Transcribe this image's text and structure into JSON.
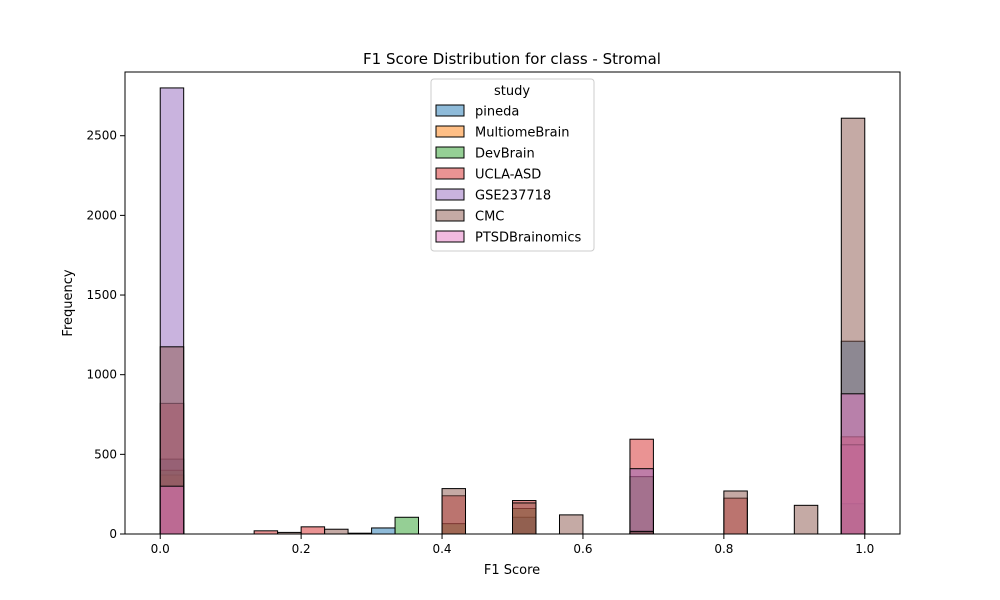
{
  "chart_data": {
    "type": "bar",
    "title": "F1 Score Distribution for class - Stromal",
    "xlabel": "F1 Score",
    "ylabel": "Frequency",
    "xlim": [
      -0.05,
      1.05
    ],
    "ylim": [
      0,
      2900
    ],
    "xticks": [
      0.0,
      0.2,
      0.4,
      0.6,
      0.8,
      1.0
    ],
    "xtick_labels": [
      "0.0",
      "0.2",
      "0.4",
      "0.6",
      "0.8",
      "1.0"
    ],
    "yticks": [
      0,
      500,
      1000,
      1500,
      2000,
      2500
    ],
    "ytick_labels": [
      "0",
      "500",
      "1000",
      "1500",
      "2000",
      "2500"
    ],
    "bin_width": 0.0333,
    "grid": false,
    "legend": {
      "title": "study",
      "position": "top-center",
      "entries": [
        "pineda",
        "MultiomeBrain",
        "DevBrain",
        "UCLA-ASD",
        "GSE237718",
        "CMC",
        "PTSDBrainomics"
      ]
    },
    "series": [
      {
        "name": "pineda",
        "color": "#1f77b4",
        "bars": [
          {
            "x": 0.0,
            "count": 470
          },
          {
            "x": 0.2667,
            "count": 5
          },
          {
            "x": 0.3,
            "count": 38
          },
          {
            "x": 0.5,
            "count": 105
          },
          {
            "x": 0.6667,
            "count": 20
          },
          {
            "x": 0.9667,
            "count": 1210
          }
        ]
      },
      {
        "name": "MultiomeBrain",
        "color": "#ff7f0e",
        "bars": [
          {
            "x": 0.0,
            "count": 370
          },
          {
            "x": 0.6667,
            "count": 5
          },
          {
            "x": 0.9667,
            "count": 560
          }
        ]
      },
      {
        "name": "DevBrain",
        "color": "#2ca02c",
        "bars": [
          {
            "x": 0.0,
            "count": 400
          },
          {
            "x": 0.3333,
            "count": 105
          },
          {
            "x": 0.4,
            "count": 65
          },
          {
            "x": 0.5,
            "count": 160
          },
          {
            "x": 0.6667,
            "count": 360
          },
          {
            "x": 0.9667,
            "count": 190
          }
        ]
      },
      {
        "name": "UCLA-ASD",
        "color": "#d62728",
        "bars": [
          {
            "x": 0.0,
            "count": 820
          },
          {
            "x": 0.1333,
            "count": 20
          },
          {
            "x": 0.2,
            "count": 45
          },
          {
            "x": 0.4,
            "count": 240
          },
          {
            "x": 0.5,
            "count": 210
          },
          {
            "x": 0.6667,
            "count": 595
          },
          {
            "x": 0.8,
            "count": 225
          },
          {
            "x": 0.9667,
            "count": 610
          }
        ]
      },
      {
        "name": "GSE237718",
        "color": "#9467bd",
        "bars": [
          {
            "x": 0.0,
            "count": 2800
          },
          {
            "x": 0.6667,
            "count": 410
          },
          {
            "x": 0.9667,
            "count": 560
          }
        ]
      },
      {
        "name": "CMC",
        "color": "#8c564b",
        "bars": [
          {
            "x": 0.0,
            "count": 1175
          },
          {
            "x": 0.1667,
            "count": 10
          },
          {
            "x": 0.2333,
            "count": 30
          },
          {
            "x": 0.4,
            "count": 285
          },
          {
            "x": 0.5,
            "count": 195
          },
          {
            "x": 0.5667,
            "count": 120
          },
          {
            "x": 0.6667,
            "count": 15
          },
          {
            "x": 0.8,
            "count": 270
          },
          {
            "x": 0.9,
            "count": 180
          },
          {
            "x": 0.9667,
            "count": 2610
          }
        ]
      },
      {
        "name": "PTSDBrainomics",
        "color": "#e377c2",
        "bars": [
          {
            "x": 0.0,
            "count": 300
          },
          {
            "x": 0.9667,
            "count": 880
          }
        ]
      }
    ]
  }
}
